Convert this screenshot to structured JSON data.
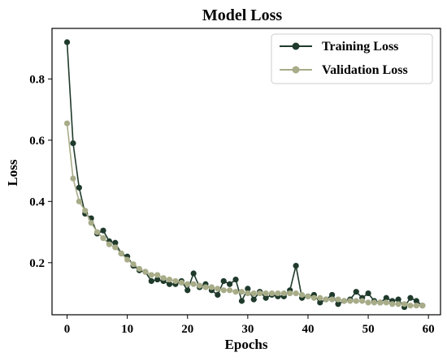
{
  "chart_data": {
    "type": "line",
    "title": "Model Loss",
    "xlabel": "Epochs",
    "ylabel": "Loss",
    "xlim": [
      -2.5,
      62
    ],
    "ylim": [
      0.03,
      0.965
    ],
    "xticks": [
      0,
      10,
      20,
      30,
      40,
      50,
      60
    ],
    "yticks": [
      0.2,
      0.4,
      0.6,
      0.8
    ],
    "ytick_labels": [
      "0.2",
      "0.4",
      "0.6",
      "0.8"
    ],
    "grid": false,
    "legend_position": "top-right",
    "series": [
      {
        "name": "Training Loss",
        "color": "#1f3a2b",
        "marker": "circle",
        "x": [
          0,
          1,
          2,
          3,
          4,
          5,
          6,
          7,
          8,
          9,
          10,
          11,
          12,
          13,
          14,
          15,
          16,
          17,
          18,
          19,
          20,
          21,
          22,
          23,
          24,
          25,
          26,
          27,
          28,
          29,
          30,
          31,
          32,
          33,
          34,
          35,
          36,
          37,
          38,
          39,
          40,
          41,
          42,
          43,
          44,
          45,
          46,
          47,
          48,
          49,
          50,
          51,
          52,
          53,
          54,
          55,
          56,
          57,
          58,
          59
        ],
        "values": [
          0.92,
          0.59,
          0.445,
          0.36,
          0.345,
          0.295,
          0.305,
          0.27,
          0.265,
          0.23,
          0.22,
          0.19,
          0.175,
          0.17,
          0.14,
          0.145,
          0.14,
          0.13,
          0.13,
          0.14,
          0.11,
          0.165,
          0.12,
          0.13,
          0.11,
          0.095,
          0.14,
          0.13,
          0.145,
          0.075,
          0.115,
          0.08,
          0.105,
          0.085,
          0.095,
          0.09,
          0.09,
          0.11,
          0.19,
          0.085,
          0.09,
          0.095,
          0.07,
          0.08,
          0.095,
          0.065,
          0.075,
          0.08,
          0.105,
          0.085,
          0.1,
          0.075,
          0.07,
          0.085,
          0.075,
          0.08,
          0.055,
          0.085,
          0.075,
          0.06
        ]
      },
      {
        "name": "Validation Loss",
        "color": "#a8ac88",
        "marker": "circle",
        "x": [
          0,
          1,
          2,
          3,
          4,
          5,
          6,
          7,
          8,
          9,
          10,
          11,
          12,
          13,
          14,
          15,
          16,
          17,
          18,
          19,
          20,
          21,
          22,
          23,
          24,
          25,
          26,
          27,
          28,
          29,
          30,
          31,
          32,
          33,
          34,
          35,
          36,
          37,
          38,
          39,
          40,
          41,
          42,
          43,
          44,
          45,
          46,
          47,
          48,
          49,
          50,
          51,
          52,
          53,
          54,
          55,
          56,
          57,
          58,
          59
        ],
        "values": [
          0.655,
          0.475,
          0.4,
          0.37,
          0.33,
          0.3,
          0.28,
          0.26,
          0.25,
          0.23,
          0.21,
          0.195,
          0.18,
          0.17,
          0.16,
          0.16,
          0.15,
          0.145,
          0.14,
          0.135,
          0.13,
          0.13,
          0.125,
          0.12,
          0.12,
          0.115,
          0.11,
          0.11,
          0.105,
          0.105,
          0.1,
          0.1,
          0.1,
          0.1,
          0.1,
          0.1,
          0.1,
          0.1,
          0.1,
          0.095,
          0.09,
          0.085,
          0.085,
          0.08,
          0.08,
          0.08,
          0.075,
          0.075,
          0.075,
          0.075,
          0.07,
          0.07,
          0.07,
          0.07,
          0.065,
          0.065,
          0.065,
          0.06,
          0.06,
          0.06
        ]
      }
    ]
  }
}
